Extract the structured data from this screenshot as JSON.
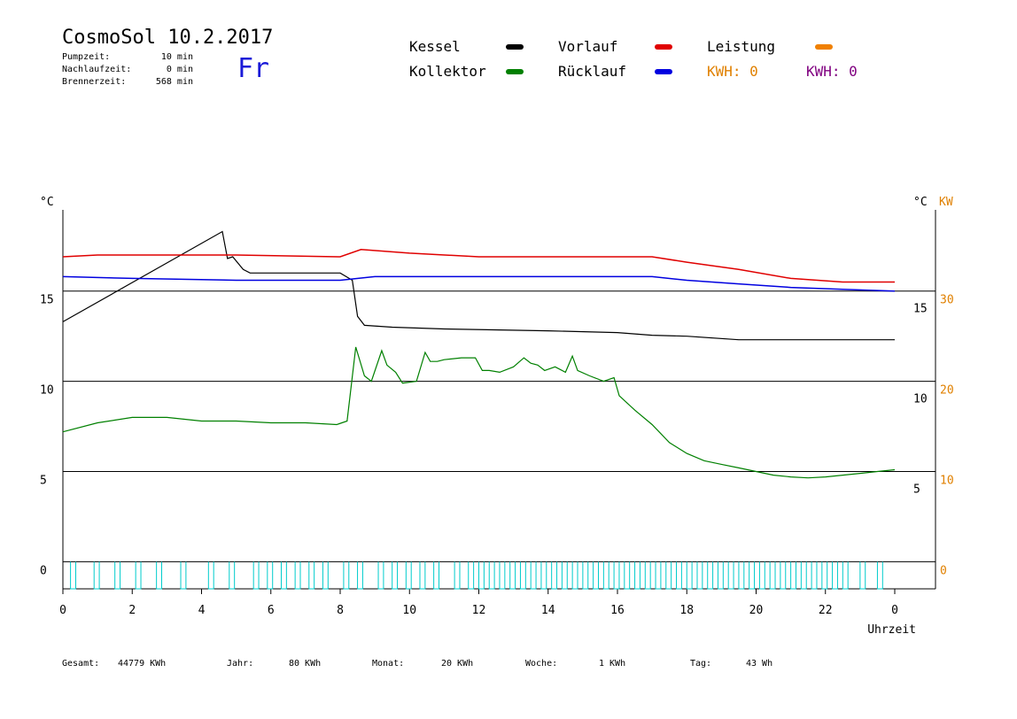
{
  "header": {
    "title": "CosmoSol 10.2.2017",
    "day": "Fr",
    "pumpzeit_label": "Pumpzeit:",
    "pumpzeit_value": "10 min",
    "nachlaufzeit_label": "Nachlaufzeit:",
    "nachlaufzeit_value": "0 min",
    "brennerzeit_label": "Brennerzeit:",
    "brennerzeit_value": "568 min"
  },
  "legend": {
    "kessel": {
      "label": "Kessel",
      "color": "#000000"
    },
    "kollektor": {
      "label": "Kollektor",
      "color": "#008000"
    },
    "vorlauf": {
      "label": "Vorlauf",
      "color": "#e00000"
    },
    "ruecklauf": {
      "label": "Rücklauf",
      "color": "#0000e0"
    },
    "leistung": {
      "label": "Leistung",
      "color": "#f08000"
    },
    "kwh1": {
      "label": "KWH: 0",
      "color": "#e08000"
    },
    "kwh2": {
      "label": "KWH: 0",
      "color": "#800080"
    }
  },
  "footer": {
    "gesamt_label": "Gesamt:",
    "gesamt_value": "44779 KWh",
    "jahr_label": "Jahr:",
    "jahr_value": "80 KWh",
    "monat_label": "Monat:",
    "monat_value": "20 KWh",
    "woche_label": "Woche:",
    "woche_value": "1 KWh",
    "tag_label": "Tag:",
    "tag_value": "43 Wh"
  },
  "chart_data": {
    "type": "line",
    "xlabel": "Uhrzeit",
    "ylabel_left": "°C",
    "ylabel_right_c": "°C",
    "ylabel_right_kw": "KW",
    "x_ticks": [
      "0",
      "2",
      "4",
      "6",
      "8",
      "10",
      "12",
      "14",
      "16",
      "18",
      "20",
      "22",
      "0"
    ],
    "y_left_ticks": [
      "0",
      "5",
      "10",
      "15"
    ],
    "y_right_c_ticks": [
      "5",
      "10",
      "15"
    ],
    "y_right_kw_ticks": [
      "0",
      "10",
      "20",
      "30"
    ],
    "xlim": [
      0,
      24
    ],
    "ylim": [
      -1.5,
      19.5
    ],
    "grid": "horizontal",
    "series": [
      {
        "name": "Kessel",
        "color": "#000000",
        "x": [
          0,
          4.6,
          4.75,
          4.9,
          5.2,
          5.4,
          8.0,
          8.35,
          8.5,
          8.7,
          9.5,
          11,
          14,
          16,
          17,
          18,
          19.5,
          22,
          24
        ],
        "y": [
          13.3,
          18.3,
          16.8,
          16.9,
          16.2,
          16.0,
          16.0,
          15.6,
          13.6,
          13.1,
          13.0,
          12.9,
          12.8,
          12.7,
          12.55,
          12.5,
          12.3,
          12.3,
          12.3
        ]
      },
      {
        "name": "Vorlauf",
        "color": "#e00000",
        "x": [
          0,
          1,
          3,
          5,
          8,
          8.6,
          10,
          12,
          15,
          17,
          18,
          19.5,
          21,
          22.5,
          24
        ],
        "y": [
          16.9,
          17.0,
          17.0,
          17.0,
          16.9,
          17.3,
          17.1,
          16.9,
          16.9,
          16.9,
          16.6,
          16.2,
          15.7,
          15.5,
          15.5
        ]
      },
      {
        "name": "Rücklauf",
        "color": "#0000e0",
        "x": [
          0,
          2,
          5,
          8,
          9,
          12,
          15,
          17,
          18,
          19.5,
          21,
          22.5,
          24
        ],
        "y": [
          15.8,
          15.7,
          15.6,
          15.6,
          15.8,
          15.8,
          15.8,
          15.8,
          15.6,
          15.4,
          15.2,
          15.1,
          15.0
        ]
      },
      {
        "name": "Kollektor",
        "color": "#008000",
        "x": [
          0,
          1,
          2,
          3,
          4,
          5,
          6,
          7,
          7.9,
          8.2,
          8.45,
          8.7,
          8.9,
          9.2,
          9.35,
          9.6,
          9.8,
          10.2,
          10.45,
          10.6,
          10.8,
          11,
          11.5,
          11.9,
          12.1,
          12.3,
          12.6,
          13,
          13.3,
          13.5,
          13.7,
          13.9,
          14.2,
          14.5,
          14.7,
          14.85,
          15.2,
          15.6,
          15.9,
          16.05,
          16.5,
          17,
          17.5,
          18,
          18.5,
          19,
          19.5,
          20,
          20.5,
          21,
          21.5,
          22,
          22.5,
          23,
          23.5,
          24
        ],
        "y": [
          7.2,
          7.7,
          8.0,
          8.0,
          7.8,
          7.8,
          7.7,
          7.7,
          7.6,
          7.8,
          11.9,
          10.3,
          10.0,
          11.7,
          10.9,
          10.5,
          9.9,
          10.0,
          11.6,
          11.1,
          11.1,
          11.2,
          11.3,
          11.3,
          10.6,
          10.6,
          10.5,
          10.8,
          11.3,
          11.0,
          10.9,
          10.6,
          10.8,
          10.5,
          11.4,
          10.6,
          10.3,
          10.0,
          10.2,
          9.2,
          8.4,
          7.6,
          6.6,
          6.0,
          5.6,
          5.4,
          5.2,
          5.0,
          4.8,
          4.7,
          4.65,
          4.7,
          4.8,
          4.9,
          5.0,
          5.1
        ]
      }
    ],
    "bars": {
      "name": "Leistung",
      "color": "#00cccc",
      "pulse_starts": [
        0.22,
        0.9,
        1.5,
        2.1,
        2.7,
        3.4,
        4.2,
        4.8,
        5.5,
        5.9,
        6.3,
        6.7,
        7.1,
        7.5,
        8.1,
        8.5,
        9.1,
        9.5,
        9.9,
        10.3,
        10.7,
        11.3,
        11.7,
        12.0,
        12.3,
        12.6,
        12.9,
        13.2,
        13.5,
        13.8,
        14.1,
        14.4,
        14.7,
        15.0,
        15.3,
        15.6,
        15.9,
        16.2,
        16.5,
        16.8,
        17.1,
        17.4,
        17.7,
        18.0,
        18.3,
        18.6,
        18.9,
        19.2,
        19.5,
        19.8,
        20.1,
        20.4,
        20.7,
        21.0,
        21.3,
        21.6,
        21.9,
        22.2,
        22.5,
        23.0,
        23.5
      ],
      "pulse_width": 0.15,
      "level_kw": -1.5
    }
  }
}
